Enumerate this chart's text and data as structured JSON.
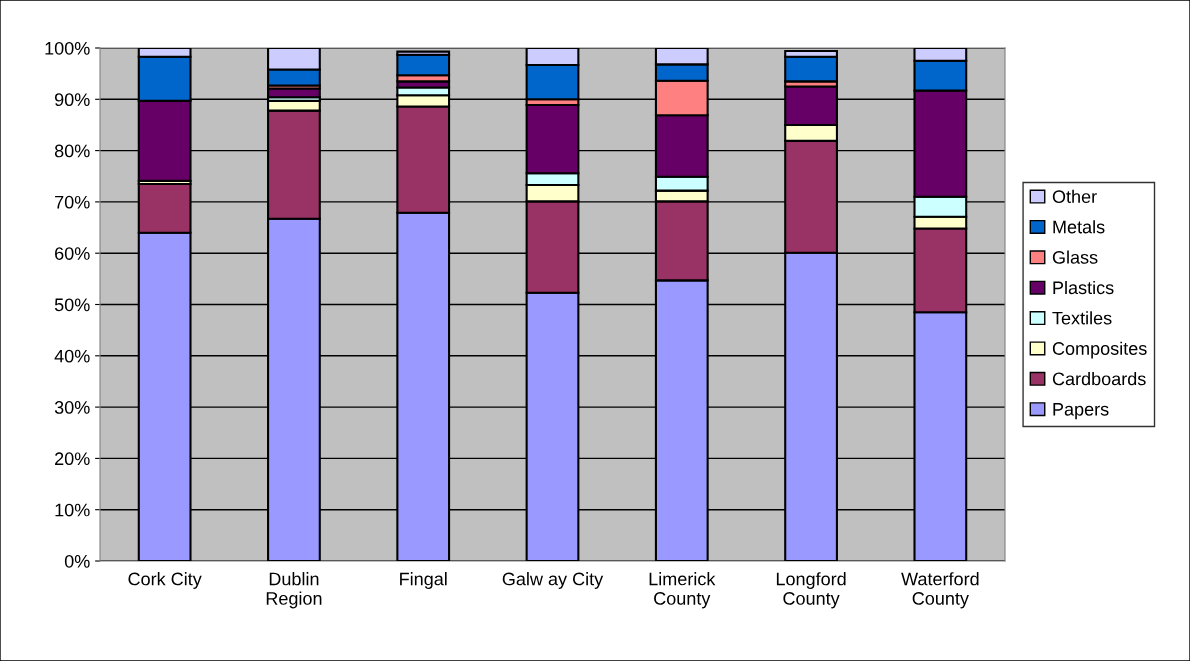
{
  "chart_data": {
    "type": "bar",
    "stacked": true,
    "categories": [
      "Cork City",
      "Dublin\nRegion",
      "Fingal",
      "Galw ay City",
      "Limerick\nCounty",
      "Longford\nCounty",
      "Waterford\nCounty"
    ],
    "series": [
      {
        "name": "Papers",
        "color": "#9999ff",
        "values": [
          64.0,
          66.7,
          67.9,
          52.3,
          54.7,
          60.1,
          48.5
        ]
      },
      {
        "name": "Cardboards",
        "color": "#993366",
        "values": [
          9.5,
          21.1,
          20.7,
          17.8,
          15.4,
          21.8,
          16.3
        ]
      },
      {
        "name": "Composites",
        "color": "#ffffcc",
        "values": [
          0.6,
          1.9,
          2.2,
          3.2,
          2.1,
          3.1,
          2.3
        ]
      },
      {
        "name": "Textiles",
        "color": "#ccffff",
        "values": [
          0,
          0.7,
          1.5,
          2.3,
          2.7,
          0,
          3.9
        ]
      },
      {
        "name": "Plastics",
        "color": "#660066",
        "values": [
          15.6,
          1.7,
          1.2,
          13.3,
          12.0,
          7.5,
          20.7
        ]
      },
      {
        "name": "Glass",
        "color": "#ff8080",
        "values": [
          0,
          0.6,
          1.2,
          1.1,
          6.7,
          1.0,
          0
        ]
      },
      {
        "name": "Metals",
        "color": "#0066cc",
        "values": [
          8.6,
          3.1,
          4.0,
          6.7,
          3.2,
          4.8,
          5.8
        ]
      },
      {
        "name": "Other",
        "color": "#ccccff",
        "values": [
          1.7,
          4.2,
          0.6,
          3.3,
          3.2,
          1.1,
          2.5
        ]
      }
    ],
    "ylim": [
      0,
      100
    ],
    "yticks": [
      {
        "value": 0,
        "label": "0%"
      },
      {
        "value": 10,
        "label": "10%"
      },
      {
        "value": 20,
        "label": "20%"
      },
      {
        "value": 30,
        "label": "30%"
      },
      {
        "value": 40,
        "label": "40%"
      },
      {
        "value": 50,
        "label": "50%"
      },
      {
        "value": 60,
        "label": "60%"
      },
      {
        "value": 70,
        "label": "70%"
      },
      {
        "value": 80,
        "label": "80%"
      },
      {
        "value": 90,
        "label": "90%"
      },
      {
        "value": 100,
        "label": "100%"
      }
    ],
    "grid": "y",
    "legend": "right"
  }
}
